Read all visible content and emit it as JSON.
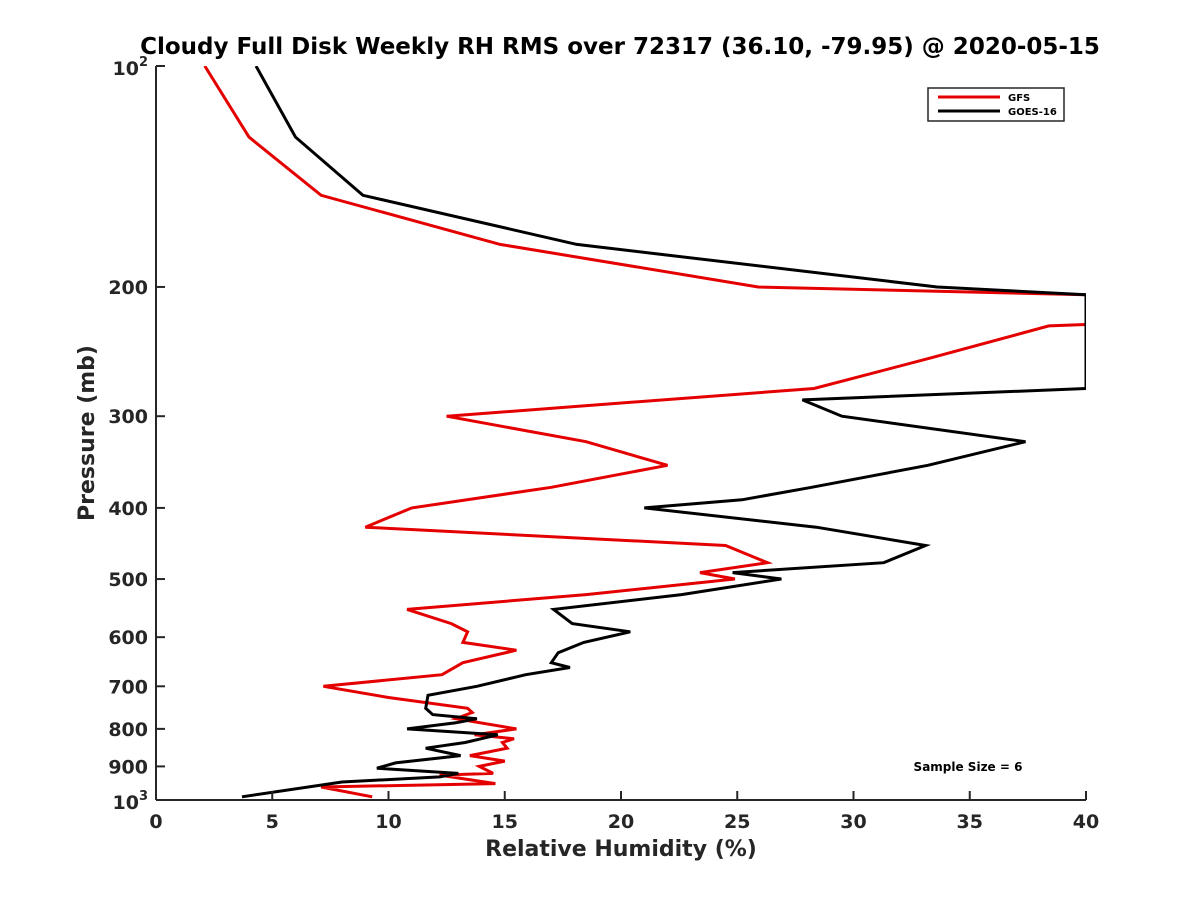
{
  "chart_data": {
    "type": "line",
    "title": "Cloudy Full Disk Weekly RH RMS over 72317 (36.10, -79.95) @ 2020-05-15",
    "xlabel": "Relative Humidity (%)",
    "ylabel": "Pressure (mb)",
    "xlim": [
      0,
      40
    ],
    "ylim": [
      1000,
      100
    ],
    "yscale": "log",
    "y_reversed": true,
    "grid": false,
    "legend_position": "top-right",
    "x_ticks": [
      0,
      5,
      10,
      15,
      20,
      25,
      30,
      35,
      40
    ],
    "x_tick_labels": [
      "0",
      "5",
      "10",
      "15",
      "20",
      "25",
      "30",
      "35",
      "40"
    ],
    "y_ticks": [
      {
        "value": 100,
        "base": "10",
        "exp": "2"
      },
      {
        "value": 200,
        "label": "200"
      },
      {
        "value": 300,
        "label": "300"
      },
      {
        "value": 400,
        "label": "400"
      },
      {
        "value": 500,
        "label": "500"
      },
      {
        "value": 600,
        "label": "600"
      },
      {
        "value": 700,
        "label": "700"
      },
      {
        "value": 800,
        "label": "800"
      },
      {
        "value": 900,
        "label": "900"
      },
      {
        "value": 1000,
        "base": "10",
        "exp": "3"
      }
    ],
    "annotation": "Sample Size = 6",
    "series": [
      {
        "name": "GFS",
        "color": "#e50000",
        "points": [
          [
            2.1,
            100
          ],
          [
            4.0,
            125
          ],
          [
            7.1,
            150
          ],
          [
            14.8,
            175
          ],
          [
            25.9,
            200
          ],
          [
            40.0,
            205
          ],
          [
            40.0,
            225
          ],
          [
            38.4,
            226
          ],
          [
            33.3,
            250
          ],
          [
            28.3,
            275
          ],
          [
            12.5,
            300
          ],
          [
            18.5,
            325
          ],
          [
            22.0,
            350
          ],
          [
            17.0,
            375
          ],
          [
            11.0,
            400
          ],
          [
            9.0,
            425
          ],
          [
            24.5,
            450
          ],
          [
            26.3,
            475
          ],
          [
            23.4,
            490
          ],
          [
            24.9,
            500
          ],
          [
            18.5,
            525
          ],
          [
            10.8,
            550
          ],
          [
            12.7,
            575
          ],
          [
            13.4,
            590
          ],
          [
            13.2,
            610
          ],
          [
            15.5,
            625
          ],
          [
            13.2,
            650
          ],
          [
            12.3,
            675
          ],
          [
            7.2,
            700
          ],
          [
            10.0,
            725
          ],
          [
            13.4,
            750
          ],
          [
            13.6,
            760
          ],
          [
            12.9,
            775
          ],
          [
            15.5,
            800
          ],
          [
            13.7,
            815
          ],
          [
            15.4,
            825
          ],
          [
            14.9,
            835
          ],
          [
            15.1,
            850
          ],
          [
            13.5,
            870
          ],
          [
            15.0,
            885
          ],
          [
            13.9,
            900
          ],
          [
            14.5,
            920
          ],
          [
            12.2,
            925
          ],
          [
            14.6,
            950
          ],
          [
            7.1,
            960
          ],
          [
            9.3,
            990
          ]
        ]
      },
      {
        "name": "GOES-16",
        "color": "#000000",
        "points": [
          [
            4.3,
            100
          ],
          [
            6.0,
            125
          ],
          [
            8.9,
            150
          ],
          [
            18.1,
            175
          ],
          [
            33.6,
            200
          ],
          [
            40.0,
            205
          ],
          [
            40.0,
            275
          ],
          [
            27.8,
            285
          ],
          [
            29.5,
            300
          ],
          [
            37.4,
            325
          ],
          [
            33.2,
            350
          ],
          [
            28.2,
            375
          ],
          [
            25.2,
            390
          ],
          [
            21.0,
            400
          ],
          [
            28.4,
            425
          ],
          [
            33.1,
            450
          ],
          [
            31.3,
            475
          ],
          [
            24.8,
            490
          ],
          [
            26.9,
            500
          ],
          [
            22.6,
            525
          ],
          [
            17.1,
            550
          ],
          [
            17.9,
            575
          ],
          [
            20.4,
            590
          ],
          [
            18.4,
            610
          ],
          [
            17.3,
            630
          ],
          [
            17.0,
            650
          ],
          [
            17.8,
            660
          ],
          [
            15.9,
            675
          ],
          [
            13.8,
            700
          ],
          [
            11.7,
            720
          ],
          [
            11.6,
            750
          ],
          [
            11.9,
            765
          ],
          [
            13.8,
            775
          ],
          [
            12.9,
            785
          ],
          [
            10.8,
            800
          ],
          [
            14.7,
            815
          ],
          [
            13.3,
            835
          ],
          [
            11.6,
            850
          ],
          [
            13.1,
            870
          ],
          [
            10.3,
            890
          ],
          [
            9.5,
            905
          ],
          [
            13.0,
            920
          ],
          [
            12.2,
            930
          ],
          [
            8.0,
            945
          ],
          [
            3.7,
            990
          ]
        ]
      }
    ]
  }
}
